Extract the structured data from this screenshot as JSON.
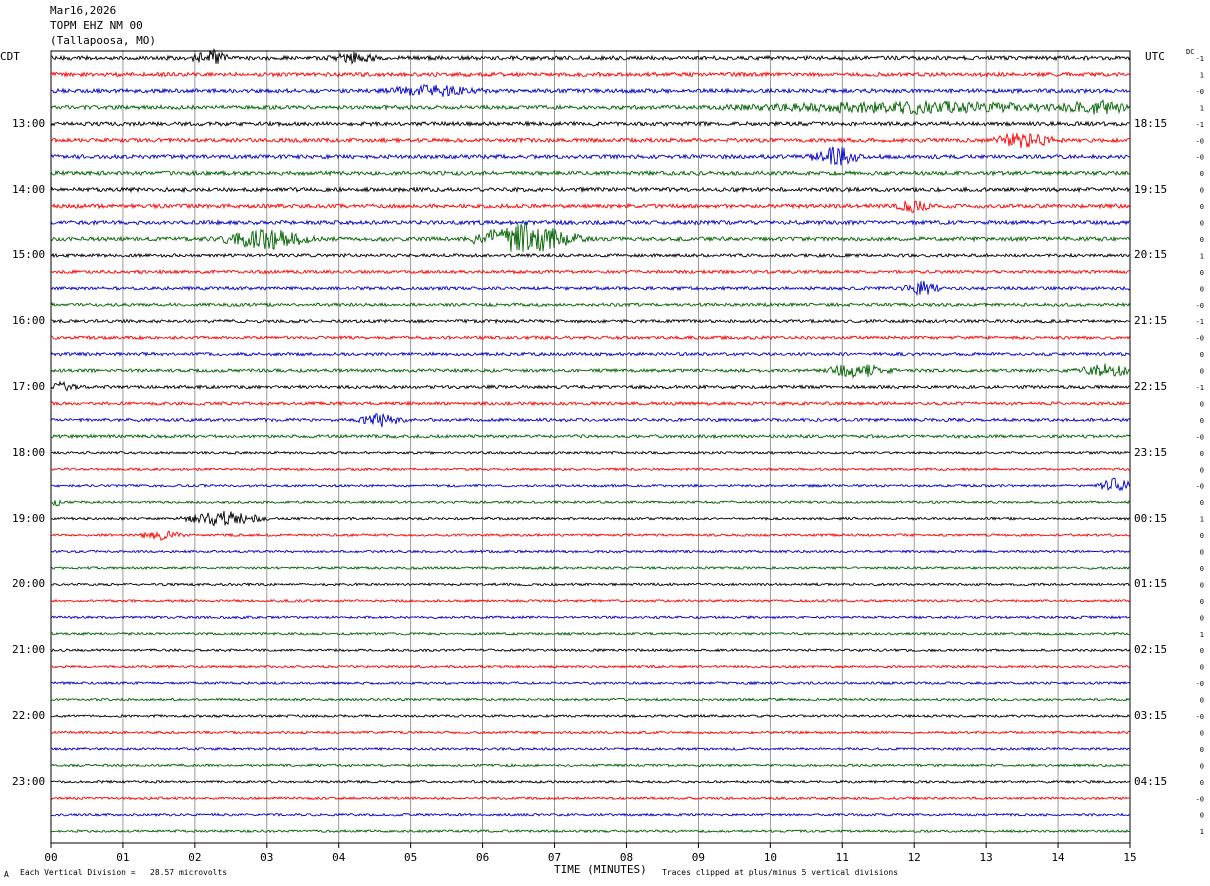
{
  "header": {
    "line1": "Mar16,2026",
    "line2": "TOPM EHZ NM 00",
    "line3": "(Tallapoosa, MO)"
  },
  "left_tz": "CDT",
  "right_tz": "UTC",
  "dc_label": "DC",
  "footer": {
    "left_mark": "A",
    "scale_text": "Each Vertical Division =   28.57 microvolts",
    "x_title": "TIME (MINUTES)",
    "clip_text": "Traces clipped at plus/minus 5 vertical divisions"
  },
  "colors": {
    "cycle": [
      "#000000",
      "#ff0000",
      "#0000cc",
      "#006400"
    ],
    "grid": "#808080"
  },
  "chart_data": {
    "type": "line",
    "title": "",
    "xlabel": "TIME (MINUTES)",
    "ylabel": "",
    "x_ticks": [
      "00",
      "01",
      "02",
      "03",
      "04",
      "05",
      "06",
      "07",
      "08",
      "09",
      "10",
      "11",
      "12",
      "13",
      "14",
      "15"
    ],
    "xlim": [
      0,
      15
    ],
    "left_hour_labels": [
      "13:00",
      "14:00",
      "15:00",
      "16:00",
      "17:00",
      "18:00",
      "19:00",
      "20:00",
      "21:00",
      "22:00",
      "23:00"
    ],
    "right_hour_labels": [
      "18:15",
      "19:15",
      "20:15",
      "21:15",
      "22:15",
      "23:15",
      "00:15",
      "01:15",
      "02:15",
      "03:15",
      "04:15"
    ],
    "trace_count": 48,
    "minutes_per_trace": 15,
    "dc_offsets": [
      "-1",
      "1",
      "-0",
      "1",
      "-1",
      "-0",
      "-0",
      "0",
      "0",
      "0",
      "0",
      "0",
      "1",
      "0",
      "0",
      "-0",
      "-1",
      "-0",
      "0",
      "0",
      "-1",
      "0",
      "0",
      "-0",
      "0",
      "0",
      "-0",
      "0",
      "1",
      "0",
      "0",
      "0",
      "0",
      "0",
      "0",
      "1",
      "0",
      "0",
      "-0",
      "0",
      "-0",
      "0",
      "0",
      "0",
      "0",
      "-0",
      "0",
      "1"
    ],
    "bursts": [
      {
        "trace": 0,
        "minute": 2.2,
        "amplitude": 2.6,
        "duration": 0.3
      },
      {
        "trace": 0,
        "minute": 4.2,
        "amplitude": 1.6,
        "duration": 0.4
      },
      {
        "trace": 2,
        "minute": 5.3,
        "amplitude": 1.5,
        "duration": 0.8
      },
      {
        "trace": 3,
        "minute": 12.0,
        "amplitude": 1.6,
        "duration": 3.0
      },
      {
        "trace": 3,
        "minute": 14.6,
        "amplitude": 1.6,
        "duration": 0.6
      },
      {
        "trace": 5,
        "minute": 13.5,
        "amplitude": 2.0,
        "duration": 0.6
      },
      {
        "trace": 6,
        "minute": 10.9,
        "amplitude": 3.2,
        "duration": 0.4
      },
      {
        "trace": 9,
        "minute": 12.0,
        "amplitude": 1.7,
        "duration": 0.3
      },
      {
        "trace": 11,
        "minute": 3.0,
        "amplitude": 3.0,
        "duration": 0.8
      },
      {
        "trace": 11,
        "minute": 6.6,
        "amplitude": 5.0,
        "duration": 0.9
      },
      {
        "trace": 14,
        "minute": 12.1,
        "amplitude": 2.4,
        "duration": 0.3
      },
      {
        "trace": 19,
        "minute": 11.2,
        "amplitude": 2.0,
        "duration": 0.6
      },
      {
        "trace": 19,
        "minute": 14.7,
        "amplitude": 2.0,
        "duration": 0.5
      },
      {
        "trace": 20,
        "minute": 0.15,
        "amplitude": 1.4,
        "duration": 0.3
      },
      {
        "trace": 22,
        "minute": 4.6,
        "amplitude": 1.8,
        "duration": 0.4
      },
      {
        "trace": 26,
        "minute": 14.8,
        "amplitude": 2.2,
        "duration": 0.3
      },
      {
        "trace": 27,
        "minute": 0.05,
        "amplitude": 1.2,
        "duration": 0.15
      },
      {
        "trace": 28,
        "minute": 2.4,
        "amplitude": 2.2,
        "duration": 0.7
      },
      {
        "trace": 29,
        "minute": 1.5,
        "amplitude": 1.4,
        "duration": 0.4
      }
    ]
  }
}
